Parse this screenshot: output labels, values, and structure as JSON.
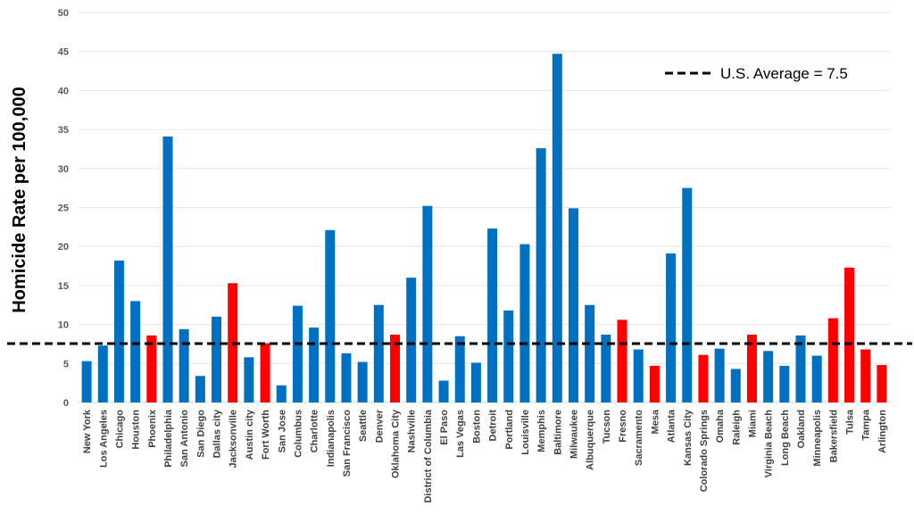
{
  "chart_data": {
    "type": "bar",
    "title": "",
    "xlabel": "",
    "ylabel": "Homicide Rate per 100,000",
    "ylim": [
      0,
      50
    ],
    "yticks": [
      0,
      5,
      10,
      15,
      20,
      25,
      30,
      35,
      40,
      45,
      50
    ],
    "grid": true,
    "legend_position": "top-right",
    "reference_line": {
      "label": "U.S. Average = 7.5",
      "value": 7.5,
      "style": "dashed",
      "color": "#000000"
    },
    "colors": {
      "default": "#0070C0",
      "highlight": "#FF0000"
    },
    "categories": [
      "New York",
      "Los Angeles",
      "Chicago",
      "Houston",
      "Phoenix",
      "Philadelphia",
      "San Antonio",
      "San Diego",
      "Dallas city",
      "Jacksonville",
      "Austin city",
      "Fort Worth",
      "San Jose",
      "Columbus",
      "Charlotte",
      "Indianapolis",
      "San Francisco",
      "Seattle",
      "Denver",
      "Oklahoma City",
      "Nashville",
      "District of Columbia",
      "El Paso",
      "Las Vegas",
      "Boston",
      "Detroit",
      "Portland",
      "Louisville",
      "Memphis",
      "Baltimore",
      "Milwaukee",
      "Albuquerque",
      "Tucson",
      "Fresno",
      "Sacramento",
      "Mesa",
      "Atlanta",
      "Kansas City",
      "Colorado Springs",
      "Omaha",
      "Raleigh",
      "Miami",
      "Virginia Beach",
      "Long Beach",
      "Oakland",
      "Minneapolis",
      "Bakersfield",
      "Tulsa",
      "Tampa",
      "Arlington"
    ],
    "values": [
      5.3,
      7.3,
      18.2,
      13.0,
      8.6,
      34.1,
      9.4,
      3.4,
      11.0,
      15.3,
      5.8,
      7.6,
      2.2,
      12.4,
      9.6,
      22.1,
      6.3,
      5.2,
      12.5,
      8.7,
      16.0,
      25.2,
      2.8,
      8.5,
      5.1,
      22.3,
      11.8,
      20.3,
      32.6,
      44.7,
      24.9,
      12.5,
      8.7,
      10.6,
      6.8,
      4.7,
      19.1,
      27.5,
      6.1,
      6.9,
      4.3,
      8.7,
      6.6,
      4.7,
      8.6,
      6.0,
      10.8,
      17.3,
      6.8,
      4.8
    ],
    "highlighted": [
      "Phoenix",
      "Jacksonville",
      "Fort Worth",
      "Oklahoma City",
      "Fresno",
      "Mesa",
      "Colorado Springs",
      "Miami",
      "Bakersfield",
      "Tulsa",
      "Tampa",
      "Arlington"
    ]
  }
}
